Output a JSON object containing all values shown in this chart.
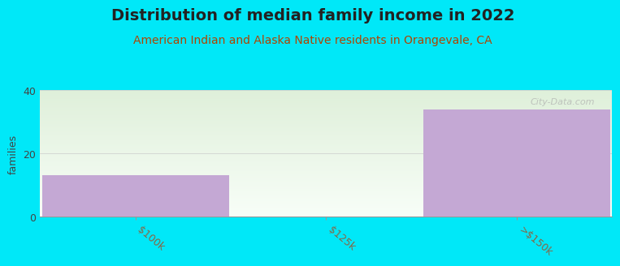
{
  "title": "Distribution of median family income in 2022",
  "subtitle": "American Indian and Alaska Native residents in Orangevale, CA",
  "categories": [
    "$100k",
    "$125k",
    ">$150k"
  ],
  "values": [
    13,
    0,
    34
  ],
  "bar_color": "#c4a8d4",
  "background_color": "#00e8f8",
  "plot_bg_top": "#dff0da",
  "plot_bg_bottom": "#f8fef8",
  "ylabel": "families",
  "ylim": [
    0,
    40
  ],
  "yticks": [
    0,
    20,
    40
  ],
  "title_fontsize": 14,
  "subtitle_fontsize": 10,
  "subtitle_color": "#b04400",
  "tick_label_color": "#886644",
  "watermark": "City-Data.com",
  "bar_width": 0.98
}
